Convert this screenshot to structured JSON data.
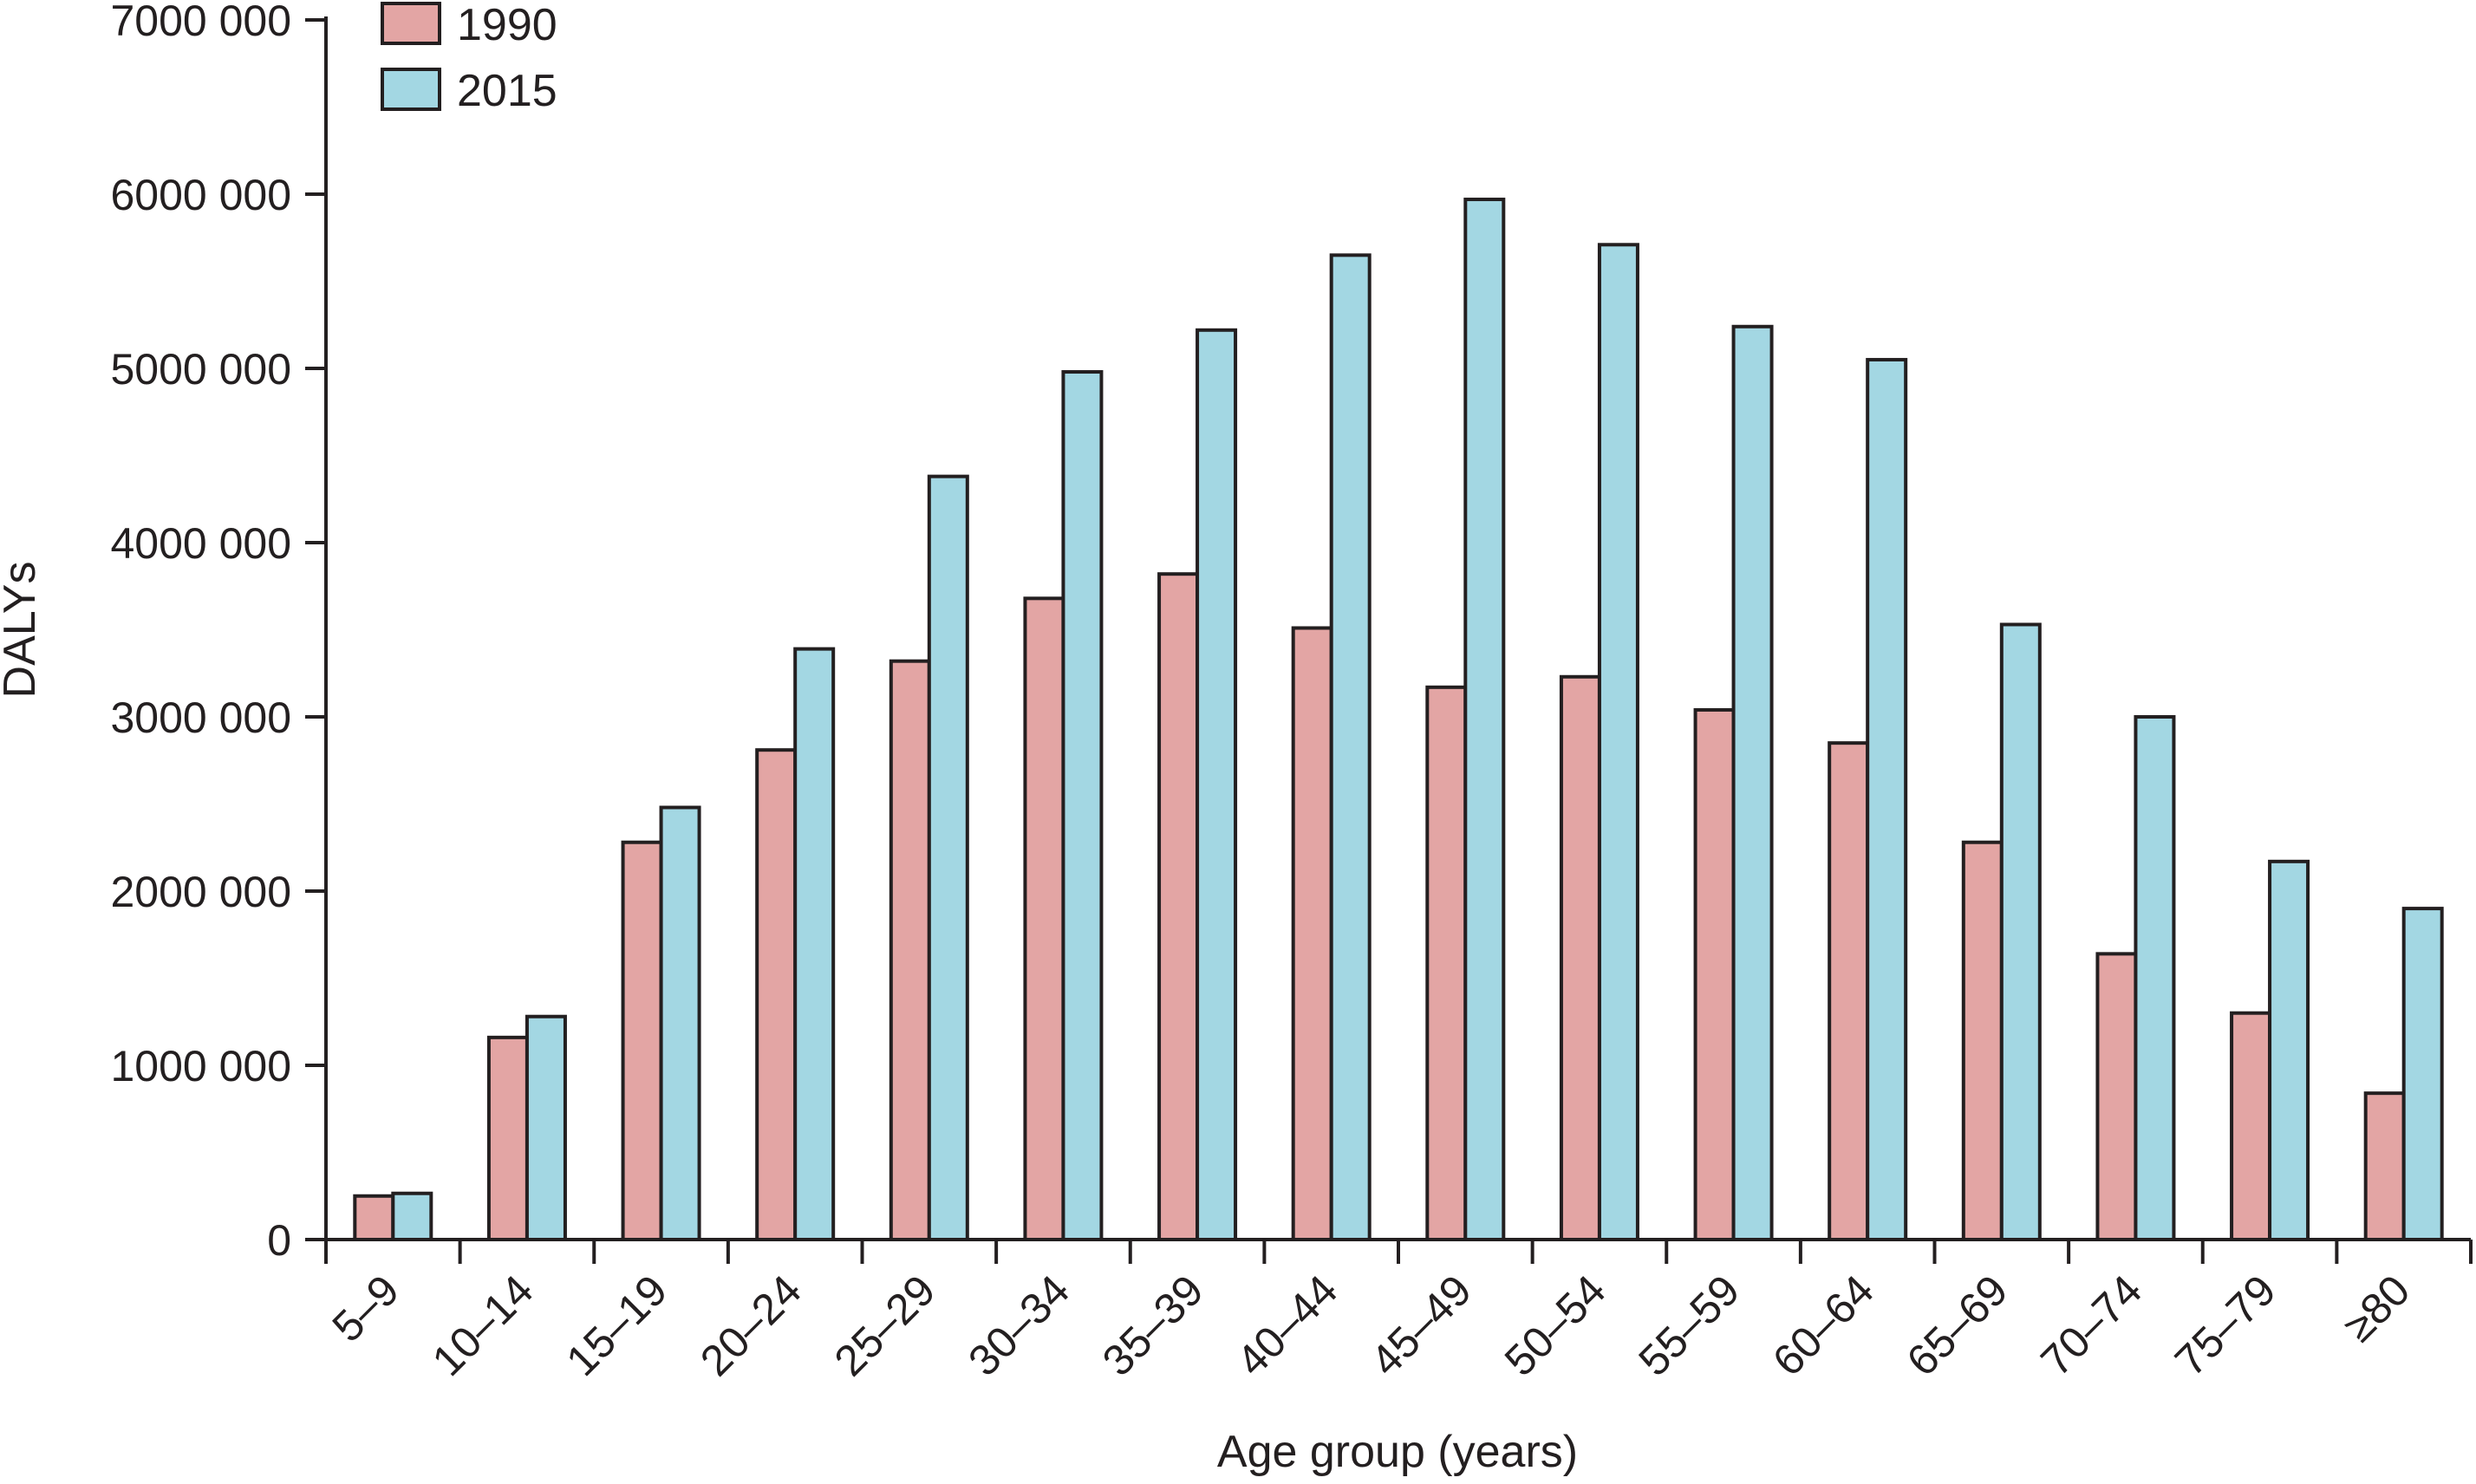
{
  "chart_data": {
    "type": "bar",
    "ylabel": "DALYs",
    "xlabel": "Age group (years)",
    "ylim": [
      0,
      7000000
    ],
    "yticks": [
      0,
      1000000,
      2000000,
      3000000,
      4000000,
      5000000,
      6000000,
      7000000
    ],
    "ytick_labels": [
      "0",
      "1000 000",
      "2000 000",
      "3000 000",
      "4000 000",
      "5000 000",
      "6000 000",
      "7000 000"
    ],
    "categories": [
      "5–9",
      "10–14",
      "15–19",
      "20–24",
      "25–29",
      "30–34",
      "35–39",
      "40–44",
      "45–49",
      "50–54",
      "55–59",
      "60–64",
      "65–69",
      "70–74",
      "75–79",
      "≥80"
    ],
    "series": [
      {
        "name": "1990",
        "color": "#e3a5a4",
        "values": [
          250000,
          1160000,
          2280000,
          2810000,
          3320000,
          3680000,
          3820000,
          3510000,
          3170000,
          3230000,
          3040000,
          2850000,
          2280000,
          1640000,
          1300000,
          840000
        ]
      },
      {
        "name": "2015",
        "color": "#a3d7e3",
        "values": [
          265000,
          1280000,
          2480000,
          3390000,
          4380000,
          4980000,
          5220000,
          5650000,
          5970000,
          5710000,
          5240000,
          5050000,
          3530000,
          3000000,
          2170000,
          1900000
        ]
      }
    ],
    "legend_position": "top-left",
    "grid": false
  }
}
